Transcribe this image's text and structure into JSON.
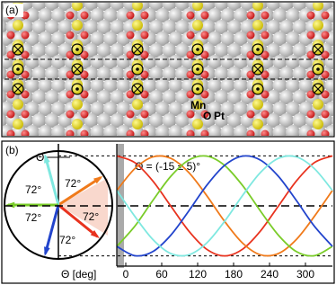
{
  "panel_a": {
    "label": "(a)",
    "species": [
      "Mn",
      "O",
      "Pt"
    ]
  },
  "chart_data": {
    "type": "line",
    "panel_label": "(b)",
    "angle_symbol": "Θ",
    "annotation": "Θ = (-15 ± 5)°",
    "angle_labels": [
      "72°",
      "72°",
      "72°",
      "72°",
      "72°"
    ],
    "xlabel": "Θ [deg]",
    "x": [
      -15,
      15,
      45,
      75,
      105,
      135,
      165,
      195,
      225,
      255,
      285,
      315,
      345
    ],
    "xlim": [
      -15,
      345
    ],
    "xticks": [
      0,
      60,
      120,
      180,
      240,
      300
    ],
    "ylim": [
      -1.15,
      1.15
    ],
    "series": [
      {
        "color": "#e8321e",
        "values": [
          1,
          0.866,
          0.5,
          0,
          -0.5,
          -0.866,
          -1,
          -0.866,
          -0.5,
          0,
          0.5,
          0.866,
          1
        ]
      },
      {
        "color": "#f07a1a",
        "values": [
          0.309,
          0.743,
          0.978,
          0.951,
          0.669,
          0.208,
          -0.309,
          -0.743,
          -0.978,
          -0.951,
          -0.669,
          -0.208,
          0.309
        ]
      },
      {
        "color": "#7acc29",
        "values": [
          -0.809,
          -0.407,
          0.105,
          0.588,
          0.914,
          0.995,
          0.809,
          0.407,
          -0.105,
          -0.588,
          -0.914,
          -0.995,
          -0.809
        ]
      },
      {
        "color": "#2244cc",
        "values": [
          -0.809,
          -0.995,
          -0.914,
          -0.588,
          -0.105,
          0.407,
          0.809,
          0.995,
          0.914,
          0.588,
          0.105,
          -0.407,
          -0.809
        ]
      },
      {
        "color": "#7fe8e0",
        "values": [
          0.309,
          -0.208,
          -0.669,
          -0.951,
          -0.978,
          -0.743,
          -0.309,
          0.208,
          0.669,
          0.951,
          0.978,
          0.743,
          0.309
        ]
      }
    ]
  }
}
